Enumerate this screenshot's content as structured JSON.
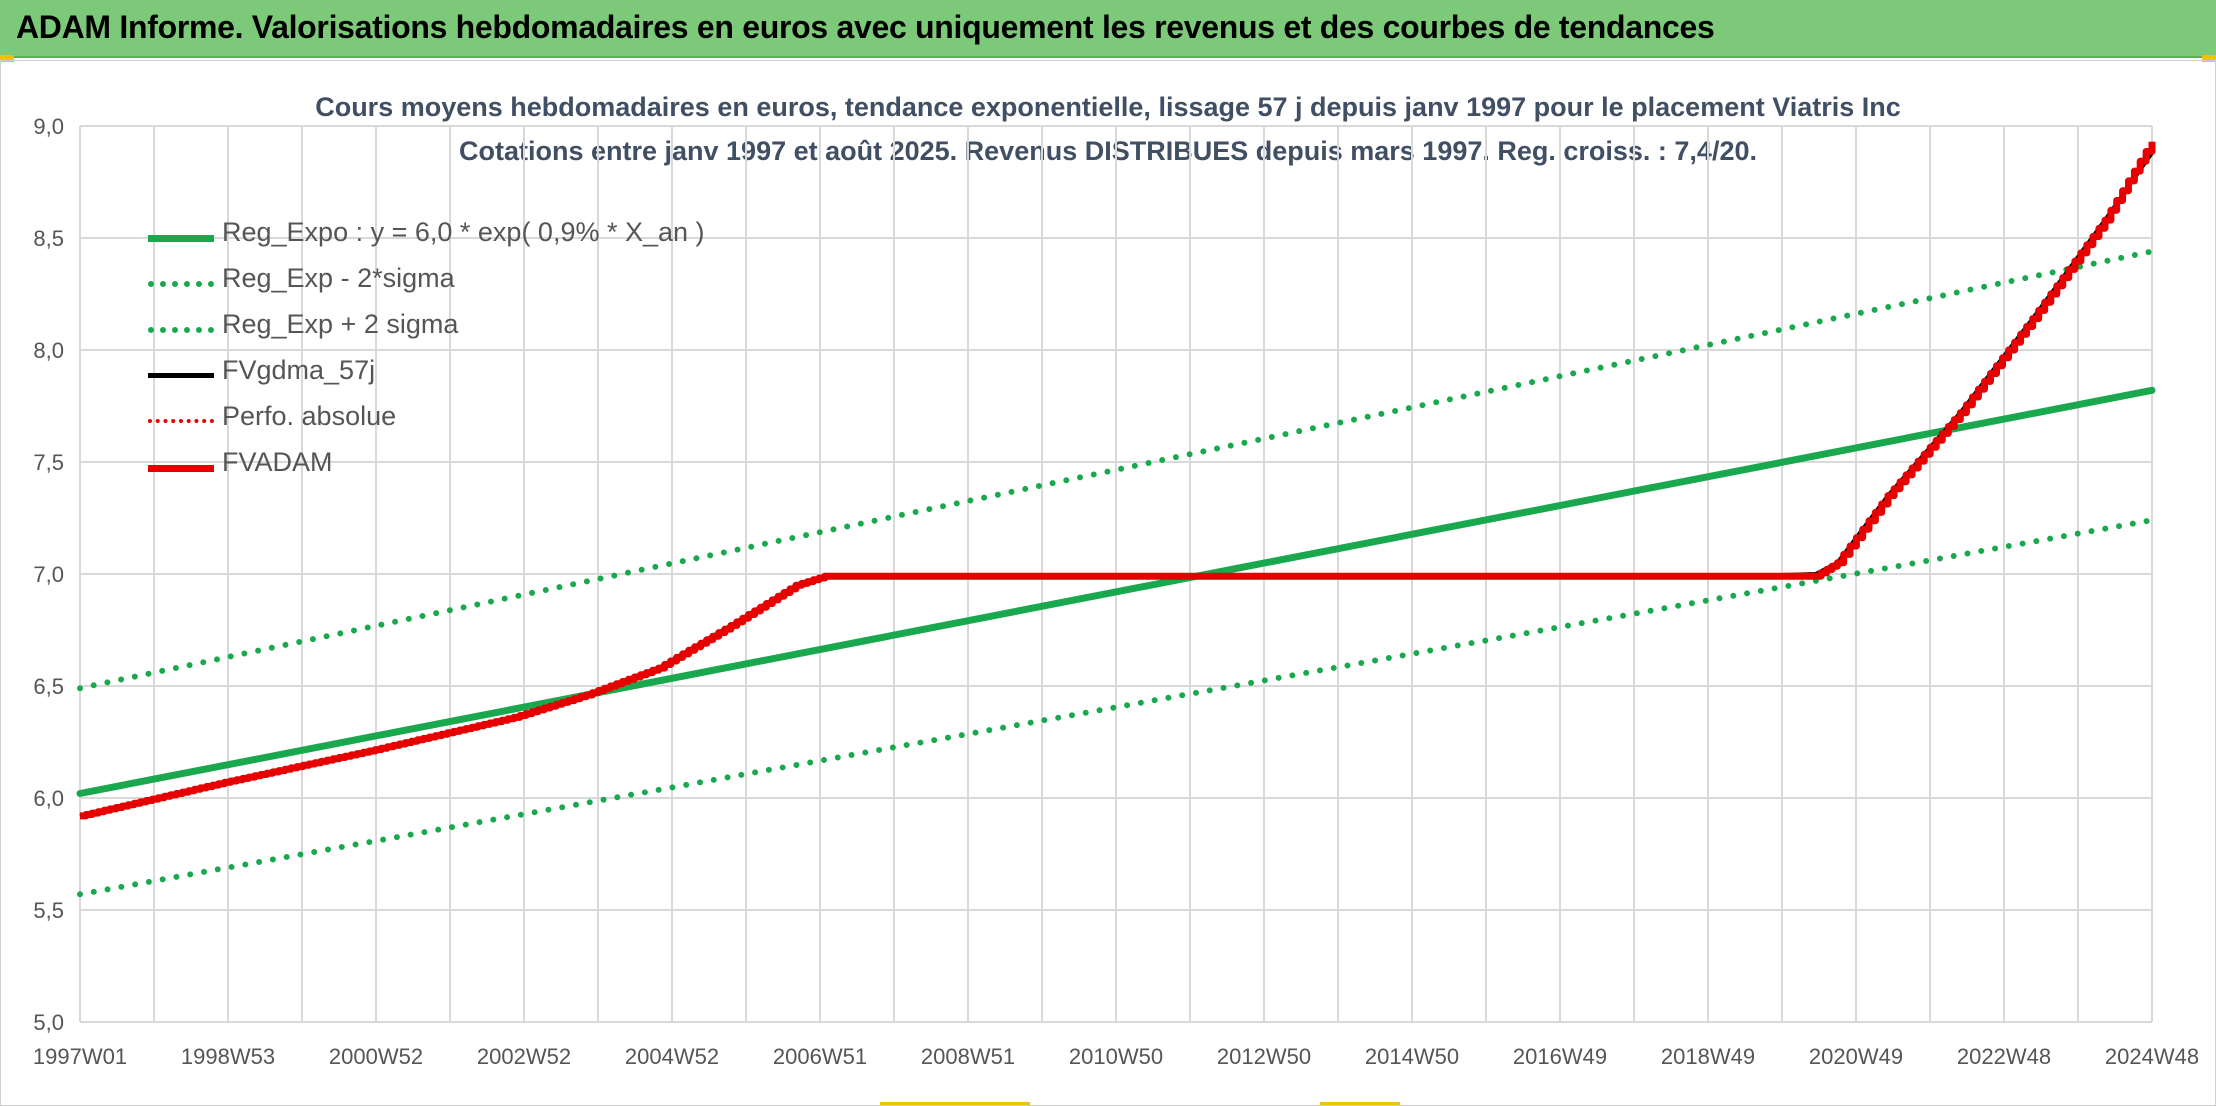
{
  "header": {
    "title": "ADAM Informe. Valorisations hebdomadaires en euros avec uniquement les revenus et des courbes de tendances"
  },
  "colors": {
    "banner": "#7dc97a",
    "trend_green": "#1aa84e",
    "adam_red": "#e60000",
    "smoothed_black": "#000000",
    "grid": "#d9d9d9"
  },
  "chart_data": {
    "type": "line",
    "title_lines": [
      "Cours moyens hebdomadaires en euros, tendance exponentielle, lissage 57 j depuis janv 1997 pour le placement Viatris Inc",
      "Cotations entre janv 1997 et août 2025. Revenus DISTRIBUES depuis mars 1997. Reg. croiss. : 7,4/20."
    ],
    "x_tick_labels": [
      "1997W01",
      "1998W53",
      "2000W52",
      "2002W52",
      "2004W52",
      "2006W51",
      "2008W51",
      "2010W50",
      "2012W50",
      "2014W50",
      "2016W49",
      "2018W49",
      "2020W49",
      "2022W48",
      "2024W48"
    ],
    "x_range": [
      1997.0,
      2025.65
    ],
    "y_tick_labels": [
      "5,0",
      "5,5",
      "6,0",
      "6,5",
      "7,0",
      "7,5",
      "8,0",
      "8,5",
      "9,0"
    ],
    "ylim": [
      5.0,
      9.0
    ],
    "y_ticks": [
      5.0,
      5.5,
      6.0,
      6.5,
      7.0,
      7.5,
      8.0,
      8.5,
      9.0
    ],
    "grid": "on",
    "legend_position": "top-left",
    "series": [
      {
        "name": "Reg_Expo : y = 6,0 * exp( 0,9% *  X_an )",
        "color": "#1aa84e",
        "style": "solid",
        "x": [
          1997.0,
          2025.65
        ],
        "y": [
          6.02,
          7.82
        ]
      },
      {
        "name": "Reg_Exp - 2*sigma",
        "color": "#1aa84e",
        "style": "dotted",
        "x": [
          1997.0,
          2025.65
        ],
        "y": [
          5.57,
          7.24
        ]
      },
      {
        "name": "Reg_Exp + 2 sigma",
        "color": "#1aa84e",
        "style": "dotted",
        "x": [
          1997.0,
          2025.65
        ],
        "y": [
          6.49,
          8.44
        ]
      },
      {
        "name": "FVgdma_57j",
        "color": "#000000",
        "style": "solid",
        "x": [
          1997.0,
          1999.0,
          2001.0,
          2003.0,
          2004.0,
          2005.0,
          2006.0,
          2006.9,
          2007.3,
          2010.0,
          2015.0,
          2020.0,
          2021.0,
          2021.3,
          2022.0,
          2023.0,
          2024.0,
          2025.0,
          2025.65
        ],
        "y": [
          5.92,
          6.07,
          6.21,
          6.36,
          6.46,
          6.58,
          6.77,
          6.95,
          6.99,
          6.99,
          6.99,
          6.99,
          7.0,
          7.05,
          7.35,
          7.72,
          8.14,
          8.58,
          8.88
        ]
      },
      {
        "name": "Perfo. absolue",
        "color": "#e60000",
        "style": "dotted",
        "x": [
          1997.0,
          1999.0,
          2001.0,
          2003.0,
          2004.0,
          2005.0,
          2006.0,
          2006.9,
          2007.3,
          2010.0,
          2015.0,
          2020.0,
          2021.0,
          2021.3,
          2022.0,
          2023.0,
          2024.0,
          2025.0,
          2025.65
        ],
        "y": [
          5.92,
          6.07,
          6.21,
          6.36,
          6.46,
          6.58,
          6.77,
          6.95,
          6.99,
          6.99,
          6.99,
          6.99,
          6.99,
          7.05,
          7.35,
          7.72,
          8.14,
          8.58,
          8.93
        ]
      },
      {
        "name": "FVADAM",
        "color": "#e60000",
        "style": "solid",
        "x": [
          1997.0,
          1999.0,
          2001.0,
          2003.0,
          2004.0,
          2005.0,
          2006.0,
          2006.9,
          2007.3,
          2010.0,
          2015.0,
          2020.0,
          2021.0,
          2021.3,
          2022.0,
          2023.0,
          2024.0,
          2025.0,
          2025.65
        ],
        "y": [
          5.92,
          6.07,
          6.21,
          6.36,
          6.46,
          6.58,
          6.77,
          6.95,
          6.99,
          6.99,
          6.99,
          6.99,
          6.99,
          7.05,
          7.35,
          7.72,
          8.14,
          8.58,
          8.93
        ]
      }
    ]
  }
}
